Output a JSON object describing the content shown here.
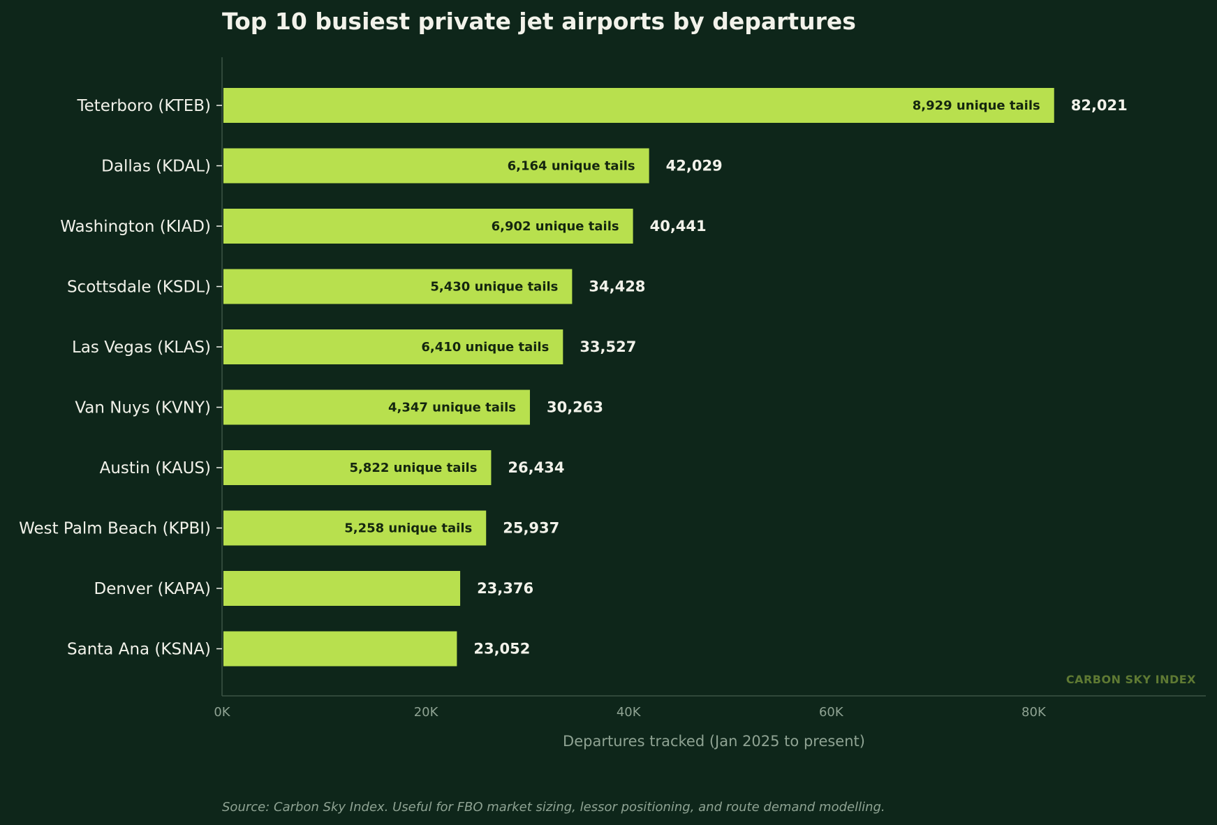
{
  "colors": {
    "background": "#0e261a",
    "bar": "#b8e04e",
    "text": "#f2f2ea",
    "muted": "#8fa393",
    "inner_label": "#14260f",
    "axis": "#3b5445",
    "watermark": "#5f7a33"
  },
  "chart_data": {
    "type": "bar",
    "orientation": "horizontal",
    "title": "Top 10 busiest private jet airports by departures",
    "xlabel": "Departures tracked (Jan 2025 to present)",
    "ylabel": "",
    "xlim": [
      0,
      97000
    ],
    "xticks": [
      0,
      20000,
      40000,
      60000,
      80000
    ],
    "xtick_labels": [
      "0K",
      "20K",
      "40K",
      "60K",
      "80K"
    ],
    "grid": false,
    "categories": [
      "Teterboro  (KTEB)",
      "Dallas  (KDAL)",
      "Washington  (KIAD)",
      "Scottsdale  (KSDL)",
      "Las Vegas  (KLAS)",
      "Van Nuys  (KVNY)",
      "Austin  (KAUS)",
      "West Palm Beach  (KPBI)",
      "Denver  (KAPA)",
      "Santa Ana  (KSNA)"
    ],
    "values": [
      82021,
      42029,
      40441,
      34428,
      33527,
      30263,
      26434,
      25937,
      23376,
      23052
    ],
    "value_labels": [
      "82,021",
      "42,029",
      "40,441",
      "34,428",
      "33,527",
      "30,263",
      "26,434",
      "25,937",
      "23,376",
      "23,052"
    ],
    "inner_labels": [
      "8,929 unique tails",
      "6,164 unique tails",
      "6,902 unique tails",
      "5,430 unique tails",
      "6,410 unique tails",
      "4,347 unique tails",
      "5,822 unique tails",
      "5,258 unique tails",
      "",
      ""
    ]
  },
  "watermark": "CARBON SKY INDEX",
  "source": "Source: Carbon Sky Index. Useful for FBO market sizing, lessor positioning, and route demand modelling."
}
